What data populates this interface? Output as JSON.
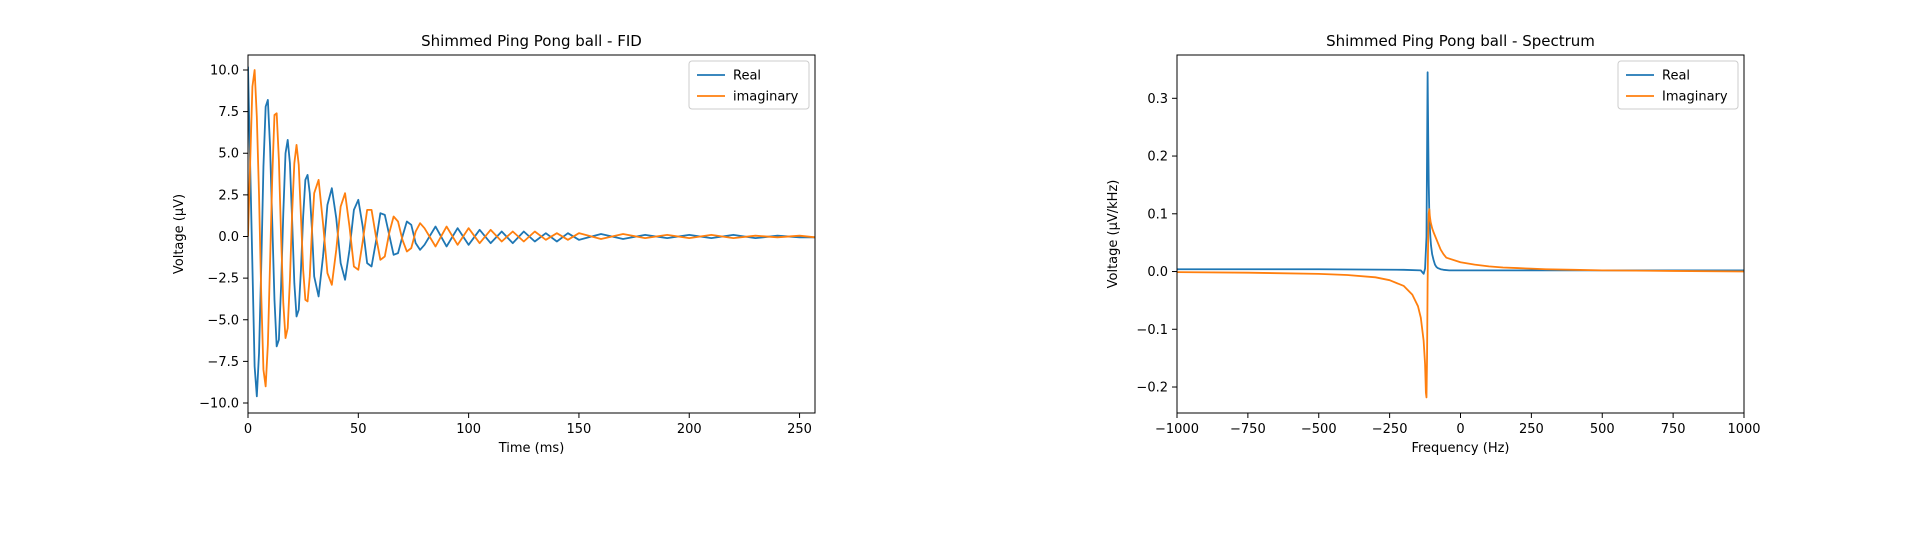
{
  "colors": {
    "real": "#1f77b4",
    "imag": "#ff7f0e"
  },
  "chart_data": [
    {
      "type": "line",
      "title": "Shimmed Ping Pong ball - FID",
      "xlabel": "Time (ms)",
      "ylabel": "Voltage (μV)",
      "xlim": [
        0,
        257
      ],
      "ylim": [
        -10.6,
        10.9
      ],
      "xticks": [
        0,
        50,
        100,
        150,
        200,
        250
      ],
      "yticks": [
        -10.0,
        -7.5,
        -5.0,
        -2.5,
        0.0,
        2.5,
        5.0,
        7.5,
        10.0
      ],
      "xtick_labels": [
        "0",
        "50",
        "100",
        "150",
        "200",
        "250"
      ],
      "ytick_labels": [
        "−10.0",
        "−7.5",
        "−5.0",
        "−2.5",
        "0.0",
        "2.5",
        "5.0",
        "7.5",
        "10.0"
      ],
      "legend": "top-right",
      "series": [
        {
          "name": "Real",
          "x": [
            0,
            3,
            4,
            5,
            6,
            7,
            8,
            9,
            10,
            11,
            12,
            13,
            14,
            15,
            16,
            17,
            18,
            19,
            20,
            21,
            22,
            23,
            24,
            25,
            26,
            27,
            28,
            29,
            30,
            32,
            34,
            36,
            38,
            40,
            42,
            44,
            46,
            48,
            50,
            52,
            54,
            56,
            58,
            60,
            62,
            64,
            66,
            68,
            70,
            72,
            74,
            76,
            78,
            80,
            85,
            90,
            95,
            100,
            105,
            110,
            115,
            120,
            125,
            130,
            135,
            140,
            145,
            150,
            160,
            170,
            180,
            190,
            200,
            210,
            220,
            230,
            240,
            250,
            257
          ],
          "y": [
            10.2,
            -7.8,
            -9.6,
            -7.0,
            -1.8,
            4.2,
            7.8,
            8.2,
            5.4,
            0.8,
            -3.8,
            -6.6,
            -6.2,
            -3.0,
            1.4,
            5.0,
            5.8,
            4.4,
            1.0,
            -2.8,
            -4.8,
            -4.4,
            -2.0,
            1.2,
            3.4,
            3.7,
            2.6,
            0.4,
            -2.4,
            -3.6,
            -1.2,
            1.9,
            2.9,
            1.1,
            -1.6,
            -2.6,
            -0.8,
            1.6,
            2.2,
            0.6,
            -1.6,
            -1.8,
            -0.3,
            1.4,
            1.3,
            0.1,
            -1.1,
            -1.0,
            0.0,
            0.9,
            0.7,
            -0.4,
            -0.8,
            -0.5,
            0.6,
            -0.6,
            0.5,
            -0.5,
            0.4,
            -0.4,
            0.3,
            -0.4,
            0.3,
            -0.3,
            0.2,
            -0.3,
            0.2,
            -0.2,
            0.15,
            -0.15,
            0.1,
            -0.1,
            0.1,
            -0.1,
            0.1,
            -0.1,
            0.05,
            -0.05,
            -0.05
          ]
        },
        {
          "name": "imaginary",
          "x": [
            0,
            2,
            3,
            4,
            5,
            6,
            7,
            8,
            9,
            10,
            11,
            12,
            13,
            14,
            15,
            16,
            17,
            18,
            19,
            20,
            21,
            22,
            23,
            24,
            25,
            26,
            27,
            28,
            29,
            30,
            32,
            34,
            36,
            38,
            40,
            42,
            44,
            46,
            48,
            50,
            52,
            54,
            56,
            58,
            60,
            62,
            64,
            66,
            68,
            70,
            72,
            74,
            76,
            78,
            80,
            85,
            90,
            95,
            100,
            105,
            110,
            115,
            120,
            125,
            130,
            135,
            140,
            145,
            150,
            160,
            170,
            180,
            190,
            200,
            210,
            220,
            230,
            240,
            250,
            257
          ],
          "y": [
            0.0,
            9.0,
            10.0,
            7.2,
            2.5,
            -3.5,
            -8.0,
            -9.0,
            -6.5,
            -1.6,
            3.6,
            7.3,
            7.4,
            4.6,
            0.0,
            -4.0,
            -6.1,
            -5.5,
            -2.6,
            1.4,
            4.4,
            5.5,
            4.3,
            1.2,
            -2.0,
            -3.8,
            -3.9,
            -2.4,
            0.4,
            2.6,
            3.4,
            0.8,
            -2.2,
            -2.9,
            -0.8,
            1.8,
            2.6,
            0.6,
            -1.8,
            -2.0,
            -0.3,
            1.6,
            1.6,
            0.0,
            -1.4,
            -1.2,
            0.2,
            1.2,
            0.9,
            -0.2,
            -0.9,
            -0.7,
            0.3,
            0.8,
            0.5,
            -0.6,
            0.6,
            -0.5,
            0.5,
            -0.4,
            0.4,
            -0.3,
            0.3,
            -0.3,
            0.3,
            -0.2,
            0.2,
            -0.2,
            0.2,
            -0.15,
            0.15,
            -0.1,
            0.1,
            -0.1,
            0.1,
            -0.1,
            0.05,
            -0.05,
            0.05,
            -0.05
          ]
        }
      ]
    },
    {
      "type": "line",
      "title": "Shimmed Ping Pong ball - Spectrum",
      "xlabel": "Frequency (Hz)",
      "ylabel": "Voltage (μV/kHz)",
      "xlim": [
        -1000,
        1000
      ],
      "ylim": [
        -0.245,
        0.375
      ],
      "xticks": [
        -1000,
        -750,
        -500,
        -250,
        0,
        250,
        500,
        750,
        1000
      ],
      "yticks": [
        -0.2,
        -0.1,
        0.0,
        0.1,
        0.2,
        0.3
      ],
      "xtick_labels": [
        "−1000",
        "−750",
        "−500",
        "−250",
        "0",
        "250",
        "500",
        "750",
        "1000"
      ],
      "ytick_labels": [
        "−0.2",
        "−0.1",
        "0.0",
        "0.1",
        "0.2",
        "0.3"
      ],
      "legend": "top-right",
      "series": [
        {
          "name": "Real",
          "x": [
            -1000,
            -500,
            -200,
            -140,
            -130,
            -125,
            -120,
            -118,
            -116,
            -114,
            -112,
            -110,
            -108,
            -106,
            -104,
            -100,
            -95,
            -90,
            -85,
            -80,
            -70,
            -60,
            -40,
            0,
            500,
            1000
          ],
          "y": [
            0.004,
            0.004,
            0.003,
            0.002,
            -0.004,
            0.005,
            0.06,
            0.2,
            0.345,
            0.24,
            0.15,
            0.1,
            0.075,
            0.058,
            0.045,
            0.03,
            0.02,
            0.012,
            0.008,
            0.006,
            0.004,
            0.003,
            0.002,
            0.002,
            0.002,
            0.002
          ]
        },
        {
          "name": "Imaginary",
          "x": [
            -1000,
            -750,
            -500,
            -400,
            -300,
            -250,
            -200,
            -170,
            -150,
            -140,
            -130,
            -125,
            -122,
            -120,
            -118,
            -116,
            -114,
            -112,
            -110,
            -108,
            -105,
            -100,
            -95,
            -90,
            -80,
            -70,
            -60,
            -50,
            0,
            50,
            100,
            150,
            200,
            250,
            300,
            400,
            500,
            750,
            1000
          ],
          "y": [
            -0.001,
            -0.002,
            -0.004,
            -0.006,
            -0.01,
            -0.015,
            -0.025,
            -0.04,
            -0.06,
            -0.08,
            -0.12,
            -0.16,
            -0.21,
            -0.218,
            -0.15,
            -0.02,
            0.06,
            0.1,
            0.108,
            0.095,
            0.085,
            0.075,
            0.068,
            0.062,
            0.05,
            0.038,
            0.03,
            0.024,
            0.016,
            0.012,
            0.009,
            0.007,
            0.006,
            0.005,
            0.004,
            0.003,
            0.002,
            0.001,
            0.0
          ]
        }
      ]
    }
  ]
}
